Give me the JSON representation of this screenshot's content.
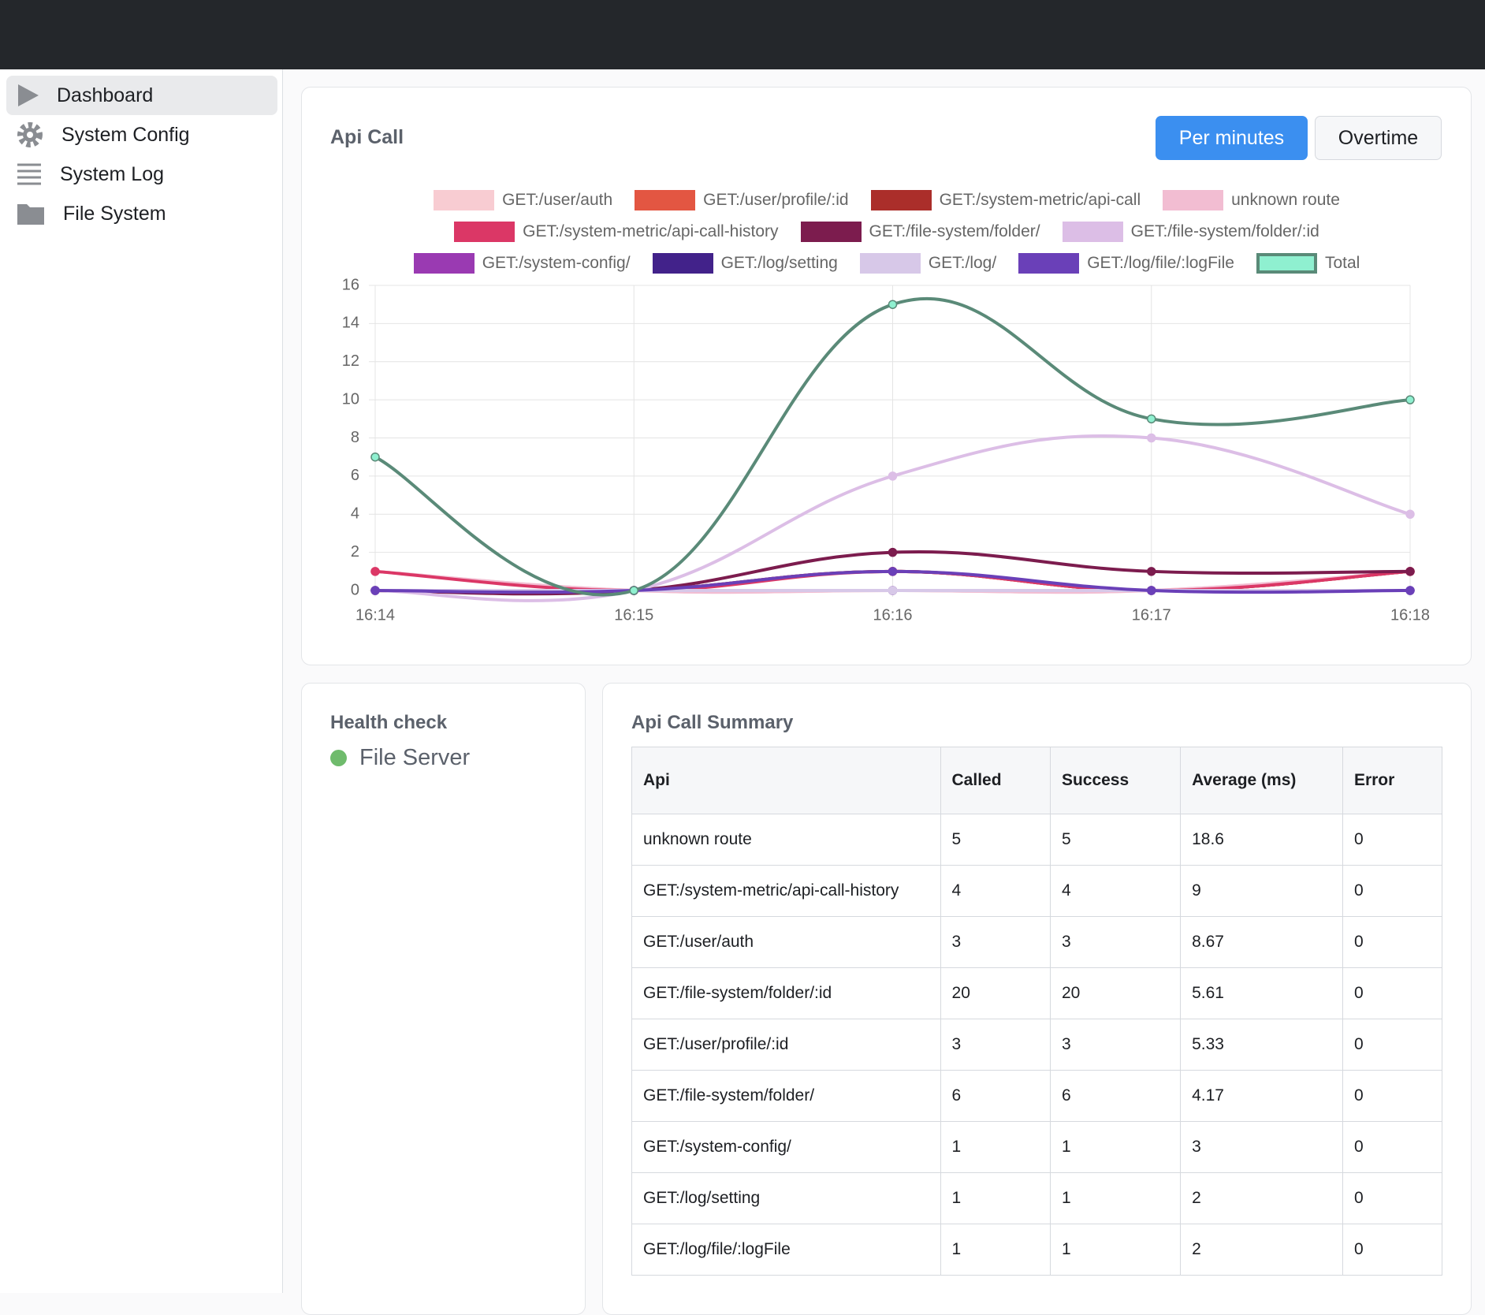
{
  "sidebar": {
    "items": [
      "Dashboard",
      "System Config",
      "System Log",
      "File System"
    ]
  },
  "controls": {
    "buttons": [
      "Per minutes",
      "Overtime"
    ]
  },
  "chart_data": {
    "type": "line",
    "title": "Api Call",
    "grid": true,
    "categories": [
      "16:14",
      "16:15",
      "16:16",
      "16:17",
      "16:18"
    ],
    "ylim": [
      0,
      16
    ],
    "yticks": [
      0,
      2,
      4,
      6,
      8,
      10,
      12,
      14,
      16
    ],
    "series": [
      {
        "name": "GET:/user/auth",
        "color": "#f8ccd2",
        "values": [
          1,
          0,
          0,
          0,
          1
        ]
      },
      {
        "name": "GET:/user/profile/:id",
        "color": "#e35642",
        "values": [
          0,
          0,
          1,
          0,
          1
        ]
      },
      {
        "name": "GET:/system-metric/api-call",
        "color": "#ab2e2a",
        "values": [
          0,
          0,
          1,
          0,
          1
        ]
      },
      {
        "name": "unknown route",
        "color": "#f2bdd2",
        "values": [
          1,
          0,
          0,
          0,
          1
        ]
      },
      {
        "name": "GET:/system-metric/api-call-history",
        "color": "#db3766",
        "values": [
          1,
          0,
          1,
          0,
          1
        ]
      },
      {
        "name": "GET:/file-system/folder/",
        "color": "#7c1c4e",
        "values": [
          0,
          0,
          2,
          1,
          1
        ]
      },
      {
        "name": "GET:/file-system/folder/:id",
        "color": "#dcbee6",
        "values": [
          0,
          0,
          6,
          8,
          4
        ]
      },
      {
        "name": "GET:/system-config/",
        "color": "#9a3ab2",
        "values": [
          0,
          0,
          0,
          0,
          0
        ]
      },
      {
        "name": "GET:/log/setting",
        "color": "#42228a",
        "values": [
          0,
          0,
          0,
          0,
          0
        ]
      },
      {
        "name": "GET:/log/",
        "color": "#d7c8e8",
        "values": [
          0,
          0,
          0,
          0,
          0
        ]
      },
      {
        "name": "GET:/log/file/:logFile",
        "color": "#6a40b8",
        "values": [
          0,
          0,
          1,
          0,
          0
        ]
      },
      {
        "name": "Total",
        "color": "#5a8a78",
        "point_color": "#8ff0d0",
        "values": [
          7,
          0,
          15,
          9,
          10
        ]
      }
    ]
  },
  "health": {
    "title": "Health check",
    "services": [
      {
        "name": "File Server",
        "color": "#6fbb6c"
      }
    ]
  },
  "summary": {
    "title": "Api Call Summary",
    "table": {
      "columns": [
        "Api",
        "Called",
        "Success",
        "Average (ms)",
        "Error"
      ],
      "rows": [
        [
          "unknown route",
          5,
          5,
          18.6,
          0
        ],
        [
          "GET:/system-metric/api-call-history",
          4,
          4,
          9,
          0
        ],
        [
          "GET:/user/auth",
          3,
          3,
          8.67,
          0
        ],
        [
          "GET:/file-system/folder/:id",
          20,
          20,
          5.61,
          0
        ],
        [
          "GET:/user/profile/:id",
          3,
          3,
          5.33,
          0
        ],
        [
          "GET:/file-system/folder/",
          6,
          6,
          4.17,
          0
        ],
        [
          "GET:/system-config/",
          1,
          1,
          3,
          0
        ],
        [
          "GET:/log/setting",
          1,
          1,
          2,
          0
        ],
        [
          "GET:/log/file/:logFile",
          1,
          1,
          2,
          0
        ]
      ]
    }
  }
}
